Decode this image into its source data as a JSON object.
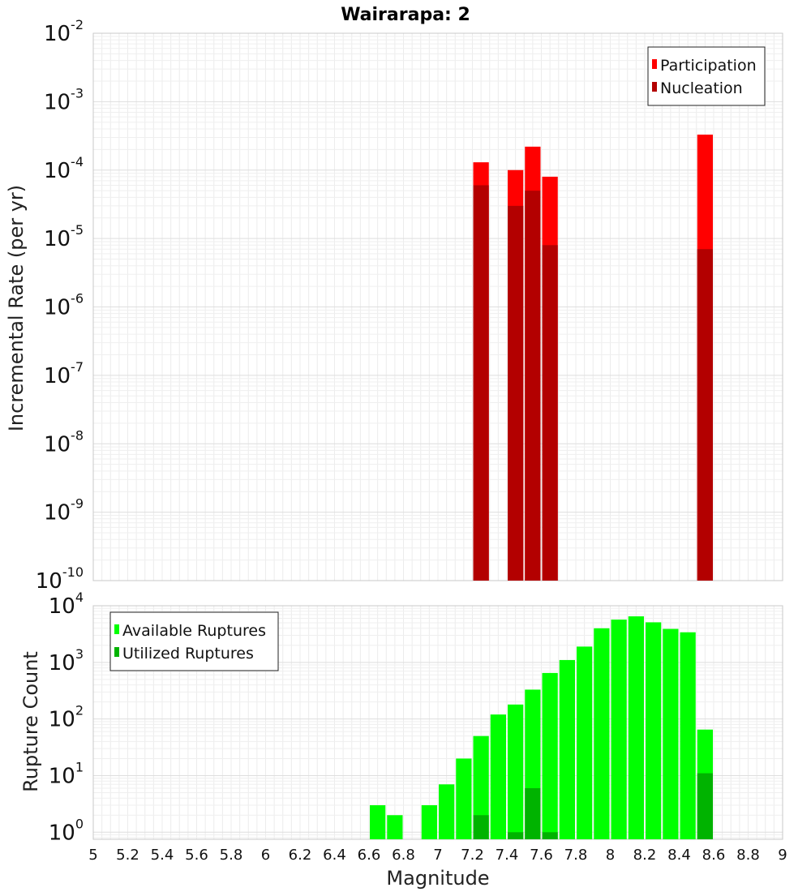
{
  "chart_data": [
    {
      "type": "bar",
      "title": "Wairarapa: 2",
      "xlabel": "",
      "ylabel": "Incremental Rate (per yr)",
      "yscale": "log",
      "ylim": [
        1e-10,
        0.01
      ],
      "xlim": [
        5,
        9
      ],
      "grid": true,
      "legend_position": "top-right",
      "bin_width": 0.1,
      "y_tick_labels": [
        "10-10",
        "10-9",
        "10-8",
        "10-7",
        "10-6",
        "10-5",
        "10-4",
        "10-3",
        "10-2"
      ],
      "series": [
        {
          "name": "Participation",
          "color": "#ff0000",
          "x": [
            7.25,
            7.45,
            7.55,
            7.65,
            8.55
          ],
          "values": [
            0.00013,
            0.0001,
            0.00022,
            8e-05,
            0.00033
          ]
        },
        {
          "name": "Nucleation",
          "color": "#b30000",
          "x": [
            7.25,
            7.45,
            7.55,
            7.65,
            8.55
          ],
          "values": [
            6e-05,
            3e-05,
            5e-05,
            8e-06,
            7e-06
          ]
        }
      ]
    },
    {
      "type": "bar",
      "title": "",
      "xlabel": "Magnitude",
      "ylabel": "Rupture Count",
      "yscale": "log",
      "ylim": [
        0.75,
        10000
      ],
      "xlim": [
        5,
        9
      ],
      "grid": true,
      "legend_position": "top-left",
      "bin_width": 0.1,
      "x_ticks": [
        "5",
        "5.2",
        "5.4",
        "5.6",
        "5.8",
        "6",
        "6.2",
        "6.4",
        "6.6",
        "6.8",
        "7",
        "7.2",
        "7.4",
        "7.6",
        "7.8",
        "8",
        "8.2",
        "8.4",
        "8.6",
        "8.8",
        "9"
      ],
      "y_tick_labels": [
        "100",
        "101",
        "102",
        "103",
        "104"
      ],
      "series": [
        {
          "name": "Available Ruptures",
          "color": "#00ff00",
          "x": [
            6.65,
            6.75,
            6.95,
            7.05,
            7.15,
            7.25,
            7.35,
            7.45,
            7.55,
            7.65,
            7.75,
            7.85,
            7.95,
            8.05,
            8.15,
            8.25,
            8.35,
            8.45,
            8.55
          ],
          "values": [
            3,
            2,
            3,
            7,
            20,
            50,
            120,
            180,
            330,
            650,
            1100,
            1900,
            4000,
            5700,
            6500,
            5100,
            3900,
            3400,
            65
          ]
        },
        {
          "name": "Utilized Ruptures",
          "color": "#00b300",
          "x": [
            7.25,
            7.45,
            7.55,
            7.65,
            8.55
          ],
          "values": [
            2,
            1,
            6,
            1,
            11
          ]
        }
      ]
    }
  ]
}
